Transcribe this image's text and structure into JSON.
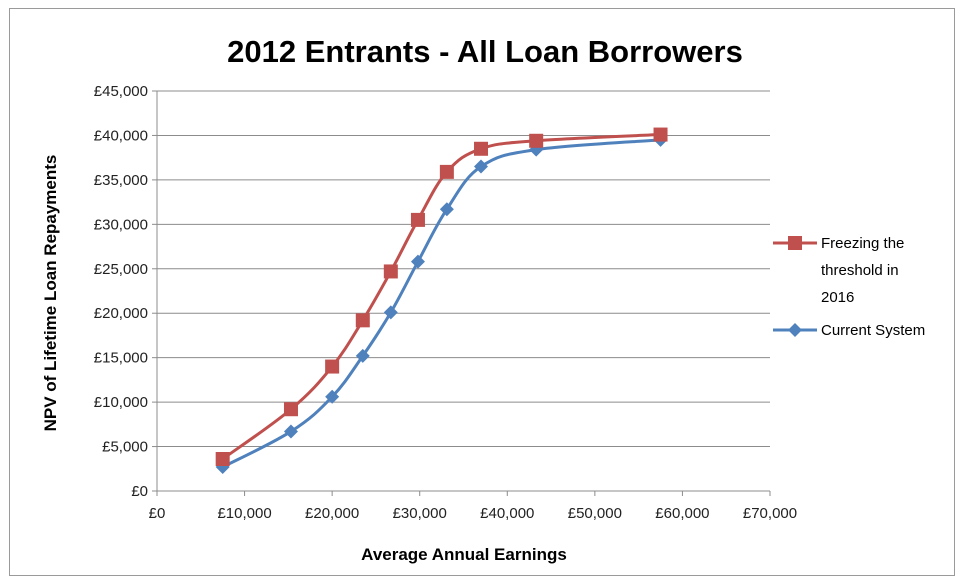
{
  "chart_data": {
    "type": "scatter",
    "title": "2012 Entrants - All Loan Borrowers",
    "xlabel": "Average Annual Earnings",
    "ylabel": "NPV of Lifetime Loan Repayments",
    "xlim": [
      0,
      70000
    ],
    "ylim": [
      0,
      45000
    ],
    "x_ticks": [
      "£0",
      "£10,000",
      "£20,000",
      "£30,000",
      "£40,000",
      "£50,000",
      "£60,000",
      "£70,000"
    ],
    "y_ticks": [
      "£0",
      "£5,000",
      "£10,000",
      "£15,000",
      "£20,000",
      "£25,000",
      "£30,000",
      "£35,000",
      "£40,000",
      "£45,000"
    ],
    "grid": "horizontal",
    "legend_position": "right",
    "series": [
      {
        "name": "Freezing the threshold in 2016",
        "legend_lines": [
          "Freezing the",
          "threshold in",
          "2016"
        ],
        "color": "#C0504D",
        "marker": "square",
        "points": [
          [
            7500,
            3600
          ],
          [
            15300,
            9200
          ],
          [
            20000,
            14000
          ],
          [
            23500,
            19200
          ],
          [
            26700,
            24700
          ],
          [
            29800,
            30500
          ],
          [
            33100,
            35900
          ],
          [
            37000,
            38500
          ],
          [
            43300,
            39400
          ],
          [
            57500,
            40100
          ]
        ]
      },
      {
        "name": "Current System",
        "legend_lines": [
          "Current System"
        ],
        "color": "#4F81BD",
        "marker": "diamond",
        "points": [
          [
            7500,
            2700
          ],
          [
            15300,
            6700
          ],
          [
            20000,
            10600
          ],
          [
            23500,
            15200
          ],
          [
            26700,
            20100
          ],
          [
            29800,
            25800
          ],
          [
            33100,
            31700
          ],
          [
            37000,
            36500
          ],
          [
            43300,
            38400
          ],
          [
            57500,
            39500
          ]
        ]
      }
    ]
  }
}
